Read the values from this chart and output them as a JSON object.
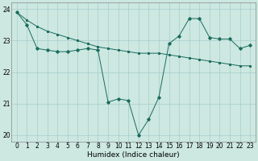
{
  "line1_x": [
    0,
    1,
    2,
    3,
    4,
    5,
    6,
    7,
    8,
    9,
    10,
    11,
    12,
    13,
    14,
    15,
    16,
    17,
    18,
    19,
    20,
    21,
    22,
    23
  ],
  "line1_y": [
    23.9,
    23.65,
    23.45,
    23.3,
    23.2,
    23.1,
    23.0,
    22.9,
    22.8,
    22.75,
    22.7,
    22.65,
    22.6,
    22.6,
    22.6,
    22.55,
    22.5,
    22.45,
    22.4,
    22.35,
    22.3,
    22.25,
    22.2,
    22.2
  ],
  "line2_x": [
    0,
    1,
    2,
    3,
    4,
    5,
    6,
    7,
    8,
    9,
    10,
    11,
    12,
    13,
    14,
    15,
    16,
    17,
    18,
    19,
    20,
    21,
    22,
    23
  ],
  "line2_y": [
    23.9,
    23.5,
    22.75,
    22.7,
    22.65,
    22.65,
    22.7,
    22.75,
    22.7,
    21.05,
    21.15,
    21.1,
    20.0,
    20.5,
    21.2,
    22.9,
    23.15,
    23.7,
    23.7,
    23.1,
    23.05,
    23.05,
    22.75,
    22.85
  ],
  "bg_color": "#cce8e0",
  "line_color": "#1a6b5e",
  "grid_color": "#a8cccc",
  "xlabel": "Humidex (Indice chaleur)",
  "ylim": [
    19.8,
    24.2
  ],
  "xlim": [
    -0.5,
    23.5
  ],
  "yticks": [
    20,
    21,
    22,
    23,
    24
  ],
  "xticks": [
    0,
    1,
    2,
    3,
    4,
    5,
    6,
    7,
    8,
    9,
    10,
    11,
    12,
    13,
    14,
    15,
    16,
    17,
    18,
    19,
    20,
    21,
    22,
    23
  ],
  "xtick_labels": [
    "0",
    "1",
    "2",
    "3",
    "4",
    "5",
    "6",
    "7",
    "8",
    "9",
    "10",
    "11",
    "12",
    "13",
    "14",
    "15",
    "16",
    "17",
    "18",
    "19",
    "20",
    "21",
    "22",
    "23"
  ],
  "axis_fontsize": 6.5,
  "tick_fontsize": 5.5
}
